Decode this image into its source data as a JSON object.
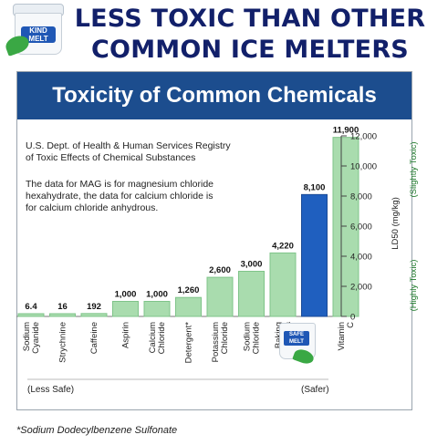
{
  "product": {
    "logo_text": "KIND MELT",
    "logo_text_small": "SAFE MELT"
  },
  "headline": [
    "LESS TOXIC THAN OTHER",
    "COMMON ICE MELTERS"
  ],
  "panel_title": "Toxicity of Common Chemicals",
  "source_note": [
    "U.S. Dept. of Health & Human Services Registry",
    "of Toxic Effects of Chemical Substances"
  ],
  "data_note": [
    "The data for MAG is for magnesium chloride",
    "hexahydrate, the data for calcium chloride is",
    "for calcium chloride anhydrous."
  ],
  "scale_left": "(Less Safe)",
  "scale_right": "(Safer)",
  "footnote": "*Sodium Dodecylbenzene Sulfonate",
  "colors": {
    "bar": "#a9dcae",
    "bar_edge": "#7fc489",
    "highlight": "#1f5fbf",
    "header": "#1c4d8e",
    "headline": "#12206a"
  },
  "chart_data": {
    "type": "bar",
    "categories": [
      "Sodium Cyanide",
      "Strychnine",
      "Caffeine",
      "Aspirin",
      "Calcium Chloride",
      "Detergent*",
      "Potassium Chloride",
      "Sodium Chloride",
      "Baking Soda",
      "",
      "Vitamin C"
    ],
    "values": [
      6.4,
      16,
      192,
      1000,
      1000,
      1260,
      2600,
      3000,
      4220,
      8100,
      11900
    ],
    "value_labels": [
      "6.4",
      "16",
      "192",
      "1,000",
      "1,000",
      "1,260",
      "2,600",
      "3,000",
      "4,220",
      "8,100",
      "11,900"
    ],
    "highlight_index": 9,
    "ylim": [
      0,
      12000
    ],
    "yticks": [
      0,
      2000,
      4000,
      6000,
      8000,
      10000,
      12000
    ],
    "ytick_labels": [
      "0",
      "2,000",
      "4,000",
      "6,000",
      "8,000",
      "10,000",
      "12,000"
    ],
    "ylabel": "LD50 (mg/kg)",
    "side_labels": {
      "high": "(Highly Toxic)",
      "low": "(Slightly Toxic)"
    }
  }
}
